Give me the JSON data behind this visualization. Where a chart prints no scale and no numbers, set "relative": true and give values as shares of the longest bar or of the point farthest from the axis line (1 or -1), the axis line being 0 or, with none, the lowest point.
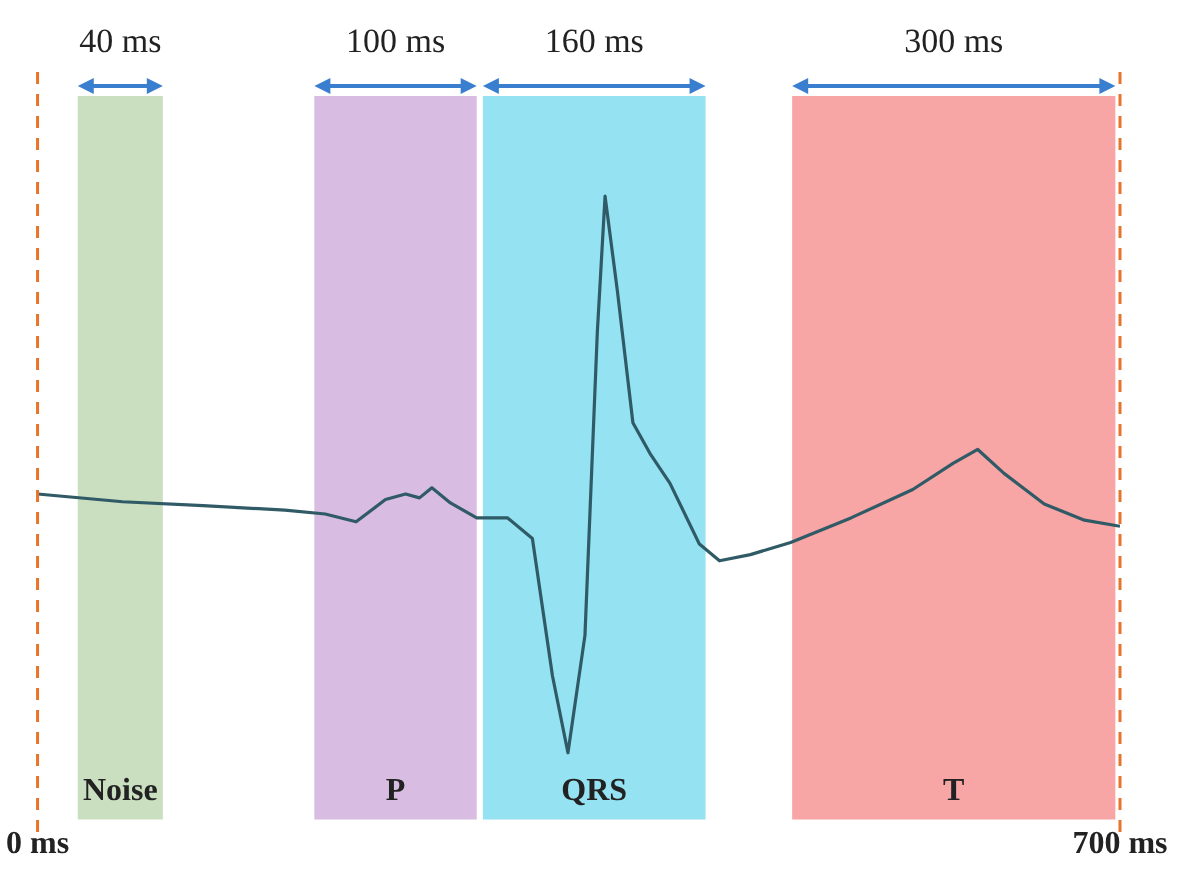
{
  "chart_data": {
    "type": "line",
    "relative": true,
    "xlim": [
      0,
      700
    ],
    "xticks": [
      {
        "value": 0,
        "label": "0 ms"
      },
      {
        "value": 700,
        "label": "700 ms"
      }
    ],
    "x": [
      0,
      55,
      107,
      160,
      186,
      206,
      225,
      238,
      247,
      255,
      267,
      284,
      304,
      320,
      333,
      343,
      354,
      362,
      367,
      375,
      385,
      396,
      409,
      428,
      441,
      461,
      487,
      526,
      566,
      592,
      608,
      625,
      651,
      677,
      700
    ],
    "series": [
      {
        "color": "#2f5a66",
        "values": [
          0.465,
          0.451,
          0.444,
          0.436,
          0.429,
          0.415,
          0.455,
          0.465,
          0.458,
          0.476,
          0.449,
          0.422,
          0.422,
          0.385,
          0.138,
          0,
          0.211,
          0.756,
          1,
          0.829,
          0.593,
          0.538,
          0.484,
          0.375,
          0.345,
          0.356,
          0.378,
          0.422,
          0.473,
          0.52,
          0.545,
          0.502,
          0.447,
          0.418,
          0.407
        ]
      }
    ],
    "bands": [
      {
        "axis": "x",
        "from": 26,
        "to": 81,
        "label": "Noise",
        "color": "#c9dfc0"
      },
      {
        "axis": "x",
        "from": 179,
        "to": 284,
        "label": "P",
        "color": "#d8bce2"
      },
      {
        "axis": "x",
        "from": 288,
        "to": 432,
        "label": "QRS",
        "color": "#94e2f2"
      },
      {
        "axis": "x",
        "from": 488,
        "to": 697,
        "label": "T",
        "color": "#f7a5a5"
      }
    ],
    "ref_lines": [
      {
        "axis": "x",
        "value": 0,
        "color": "#e8742a",
        "line_style": "dashed"
      },
      {
        "axis": "x",
        "value": 700,
        "color": "#e8742a",
        "line_style": "dashed"
      }
    ],
    "annotations": [
      "40 ms",
      "100 ms",
      "160 ms",
      "300 ms"
    ],
    "grid": false,
    "legend": false,
    "marker": "none",
    "line_style": "solid"
  }
}
